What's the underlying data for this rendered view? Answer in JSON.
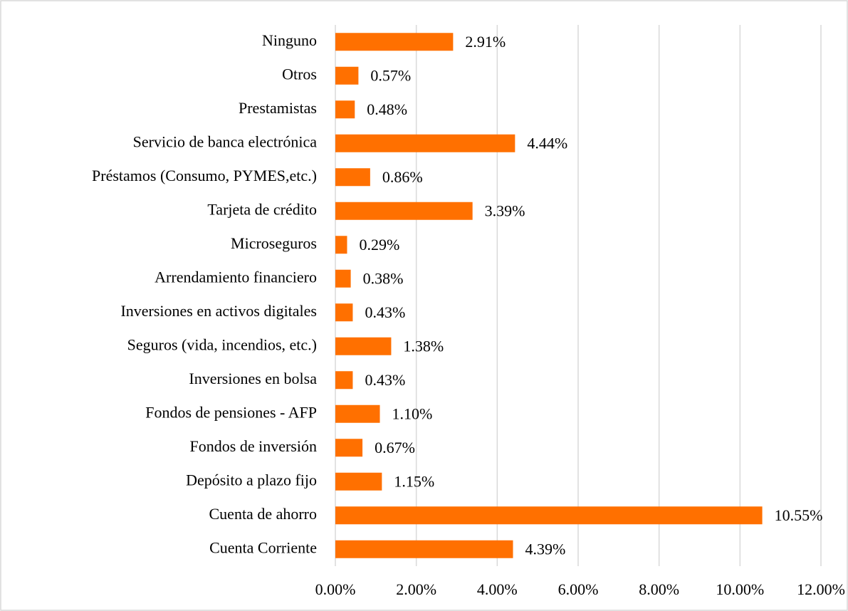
{
  "chart_data": {
    "type": "barh",
    "categories": [
      "Ninguno",
      "Otros",
      "Prestamistas",
      "Servicio de banca electrónica",
      "Préstamos (Consumo, PYMES,etc.)",
      "Tarjeta de crédito",
      "Microseguros",
      "Arrendamiento financiero",
      "Inversiones en activos digitales",
      "Seguros (vida, incendios, etc.)",
      "Inversiones en bolsa",
      "Fondos de pensiones - AFP",
      "Fondos de inversión",
      "Depósito a plazo fijo",
      "Cuenta de ahorro",
      "Cuenta Corriente"
    ],
    "values": [
      2.91,
      0.57,
      0.48,
      4.44,
      0.86,
      3.39,
      0.29,
      0.38,
      0.43,
      1.38,
      0.43,
      1.1,
      0.67,
      1.15,
      10.55,
      4.39
    ],
    "value_labels": [
      "2.91%",
      "0.57%",
      "0.48%",
      "4.44%",
      "0.86%",
      "3.39%",
      "0.29%",
      "0.38%",
      "0.43%",
      "1.38%",
      "0.43%",
      "1.10%",
      "0.67%",
      "1.15%",
      "10.55%",
      "4.39%"
    ],
    "color": "#ff7000",
    "xlim": [
      0,
      12
    ],
    "xticks": [
      {
        "value": 0,
        "label": "0.00%"
      },
      {
        "value": 2,
        "label": "2.00%"
      },
      {
        "value": 4,
        "label": "4.00%"
      },
      {
        "value": 6,
        "label": "6.00%"
      },
      {
        "value": 8,
        "label": "8.00%"
      },
      {
        "value": 10,
        "label": "10.00%"
      },
      {
        "value": 12,
        "label": "12.00%"
      }
    ],
    "grid": true
  }
}
